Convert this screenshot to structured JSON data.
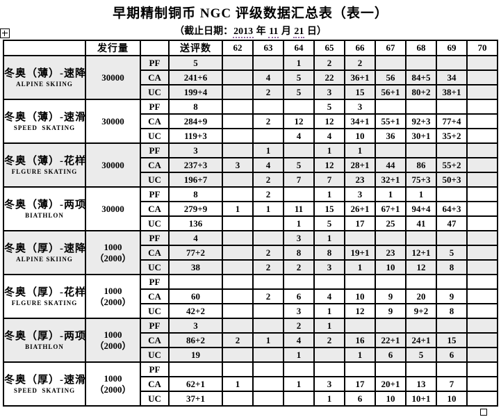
{
  "title": "早期精制铜币 NGC 评级数据汇总表（表一）",
  "subtitle": {
    "prefix": "（截止日期：",
    "year": "2013",
    "sep1": " 年 ",
    "month": "11",
    "sep2": " 月 ",
    "day": "21",
    "suffix": " 日）"
  },
  "colors": {
    "band_shade": "#ebebeb",
    "border": "#000000",
    "date_underline": "#8f5f9f"
  },
  "table": {
    "header": [
      "",
      "发行量",
      "",
      "送评数",
      "62",
      "63",
      "64",
      "65",
      "66",
      "67",
      "68",
      "69",
      "70"
    ],
    "sections": [
      {
        "name_cn": "冬奥（薄）-速降",
        "name_en": "ALPINE SKIING",
        "mintage": [
          "30000"
        ],
        "shaded": true,
        "rows": [
          {
            "type": "PF",
            "total": "5",
            "grades": [
              "",
              "",
              "1",
              "2",
              "2",
              "",
              "",
              "",
              ""
            ]
          },
          {
            "type": "CA",
            "total": "241+6",
            "grades": [
              "",
              "4",
              "5",
              "22",
              "36+1",
              "56",
              "84+5",
              "34",
              ""
            ]
          },
          {
            "type": "UC",
            "total": "199+4",
            "grades": [
              "",
              "2",
              "5",
              "3",
              "15",
              "56+1",
              "80+2",
              "38+1",
              ""
            ]
          }
        ]
      },
      {
        "name_cn": "冬奥（薄）-速滑",
        "name_en": "SPEED  SKATING",
        "mintage": [
          "30000"
        ],
        "shaded": false,
        "rows": [
          {
            "type": "PF",
            "total": "8",
            "grades": [
              "",
              "",
              "",
              "5",
              "3",
              "",
              "",
              "",
              ""
            ]
          },
          {
            "type": "CA",
            "total": "284+9",
            "grades": [
              "",
              "2",
              "12",
              "12",
              "34+1",
              "55+1",
              "92+3",
              "77+4",
              ""
            ]
          },
          {
            "type": "UC",
            "total": "119+3",
            "grades": [
              "",
              "",
              "4",
              "4",
              "10",
              "36",
              "30+1",
              "35+2",
              ""
            ]
          }
        ]
      },
      {
        "name_cn": "冬奥（薄）-花样",
        "name_en": "FLGURE SKATING",
        "mintage": [
          "30000"
        ],
        "shaded": true,
        "rows": [
          {
            "type": "PF",
            "total": "3",
            "grades": [
              "",
              "1",
              "",
              "1",
              "1",
              "",
              "",
              "",
              ""
            ]
          },
          {
            "type": "CA",
            "total": "237+3",
            "grades": [
              "3",
              "4",
              "5",
              "12",
              "28+1",
              "44",
              "86",
              "55+2",
              ""
            ]
          },
          {
            "type": "UC",
            "total": "196+7",
            "grades": [
              "",
              "2",
              "7",
              "7",
              "23",
              "32+1",
              "75+3",
              "50+3",
              ""
            ]
          }
        ]
      },
      {
        "name_cn": "冬奥（薄）-两项",
        "name_en": "BIATHLON",
        "mintage": [
          "30000"
        ],
        "shaded": false,
        "rows": [
          {
            "type": "PF",
            "total": "8",
            "grades": [
              "",
              "2",
              "",
              "1",
              "3",
              "1",
              "1",
              "",
              ""
            ]
          },
          {
            "type": "CA",
            "total": "279+9",
            "grades": [
              "1",
              "1",
              "11",
              "15",
              "26+1",
              "67+1",
              "94+4",
              "64+3",
              ""
            ]
          },
          {
            "type": "UC",
            "total": "136",
            "grades": [
              "",
              "",
              "1",
              "5",
              "17",
              "25",
              "41",
              "47",
              ""
            ]
          }
        ]
      },
      {
        "name_cn": "冬奥（厚）-速降",
        "name_en": "ALPINE SKIING",
        "mintage": [
          "1000",
          "（2000）"
        ],
        "shaded": true,
        "rows": [
          {
            "type": "PF",
            "total": "4",
            "grades": [
              "",
              "",
              "3",
              "1",
              "",
              "",
              "",
              "",
              ""
            ]
          },
          {
            "type": "CA",
            "total": "77+2",
            "grades": [
              "",
              "2",
              "8",
              "8",
              "19+1",
              "23",
              "12+1",
              "5",
              ""
            ]
          },
          {
            "type": "UC",
            "total": "38",
            "grades": [
              "",
              "2",
              "2",
              "3",
              "1",
              "10",
              "12",
              "8",
              ""
            ]
          }
        ]
      },
      {
        "name_cn": "冬奥（厚）-花样",
        "name_en": "FLGURE SKATING",
        "mintage": [
          "1000",
          "（2000）"
        ],
        "shaded": false,
        "rows": [
          {
            "type": "PF",
            "total": "",
            "grades": [
              "",
              "",
              "",
              "",
              "",
              "",
              "",
              "",
              ""
            ]
          },
          {
            "type": "CA",
            "total": "60",
            "grades": [
              "",
              "2",
              "6",
              "4",
              "10",
              "9",
              "20",
              "9",
              ""
            ]
          },
          {
            "type": "UC",
            "total": "42+2",
            "grades": [
              "",
              "",
              "3",
              "1",
              "12",
              "9",
              "9+2",
              "8",
              ""
            ]
          }
        ]
      },
      {
        "name_cn": "冬奥（厚）-两项",
        "name_en": "BIATHLON",
        "mintage": [
          "1000",
          "（2000）"
        ],
        "shaded": true,
        "rows": [
          {
            "type": "PF",
            "total": "3",
            "grades": [
              "",
              "",
              "2",
              "1",
              "",
              "",
              "",
              "",
              ""
            ]
          },
          {
            "type": "CA",
            "total": "86+2",
            "grades": [
              "2",
              "1",
              "4",
              "2",
              "16",
              "22+1",
              "24+1",
              "15",
              ""
            ]
          },
          {
            "type": "UC",
            "total": "19",
            "grades": [
              "",
              "",
              "1",
              "",
              "1",
              "6",
              "5",
              "6",
              ""
            ]
          }
        ]
      },
      {
        "name_cn": "冬奥（厚）-速滑",
        "name_en": "SPEED  SKATING",
        "mintage": [
          "1000",
          "（2000）"
        ],
        "shaded": false,
        "rows": [
          {
            "type": "PF",
            "total": "",
            "grades": [
              "",
              "",
              "",
              "",
              "",
              "",
              "",
              "",
              ""
            ]
          },
          {
            "type": "CA",
            "total": "62+1",
            "grades": [
              "1",
              "",
              "1",
              "3",
              "17",
              "20+1",
              "13",
              "7",
              ""
            ]
          },
          {
            "type": "UC",
            "total": "37+1",
            "grades": [
              "",
              "",
              "",
              "1",
              "6",
              "10",
              "10+1",
              "10",
              ""
            ]
          }
        ]
      }
    ]
  }
}
